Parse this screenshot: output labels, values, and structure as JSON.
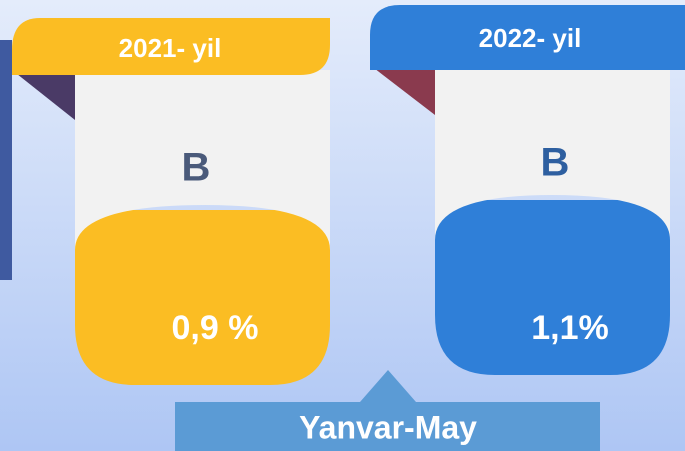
{
  "cards": [
    {
      "year": "2021- yil",
      "letter": "B",
      "value": "0,9 %"
    },
    {
      "year": "2022- yil",
      "letter": "B",
      "value": "1,1%"
    }
  ],
  "period": "Yanvar-May"
}
